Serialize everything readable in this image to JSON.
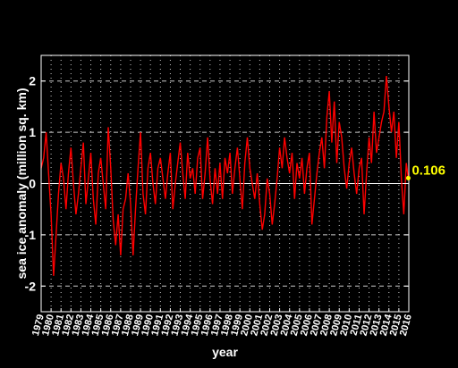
{
  "chart_data": {
    "type": "line",
    "title": "",
    "xlabel": "year",
    "ylabel": "sea ice anomaly (million sq. km)",
    "xlim": [
      1979,
      2016
    ],
    "ylim": [
      -2.5,
      2.5
    ],
    "yticks": [
      -2,
      -1,
      0,
      1,
      2
    ],
    "xticks": [
      1979,
      1980,
      1981,
      1982,
      1983,
      1984,
      1985,
      1986,
      1987,
      1988,
      1989,
      1990,
      1991,
      1992,
      1993,
      1994,
      1995,
      1996,
      1997,
      1998,
      1999,
      2000,
      2001,
      2002,
      2003,
      2004,
      2005,
      2006,
      2007,
      2008,
      2009,
      2010,
      2011,
      2012,
      2013,
      2014,
      2015,
      2016
    ],
    "grid": true,
    "colors": {
      "background": "#000000",
      "line": "#ff0000",
      "grid": "#cccccc",
      "zero_line": "#ffffff",
      "text": "#ffffff",
      "annotation": "#ffff00"
    },
    "annotation": {
      "text": "0.106",
      "x": 2015.95,
      "y": 0.106
    },
    "series": [
      {
        "x": [
          1979.0,
          1979.25,
          1979.5,
          1979.75,
          1980.0,
          1980.25,
          1980.5,
          1980.75,
          1981.0,
          1981.25,
          1981.5,
          1981.75,
          1982.0,
          1982.25,
          1982.5,
          1982.75,
          1983.0,
          1983.25,
          1983.5,
          1983.75,
          1984.0,
          1984.25,
          1984.5,
          1984.75,
          1985.0,
          1985.25,
          1985.5,
          1985.75,
          1986.0,
          1986.25,
          1986.5,
          1986.75,
          1987.0,
          1987.25,
          1987.5,
          1987.75,
          1988.0,
          1988.25,
          1988.5,
          1988.75,
          1989.0,
          1989.25,
          1989.5,
          1989.75,
          1990.0,
          1990.25,
          1990.5,
          1990.75,
          1991.0,
          1991.25,
          1991.5,
          1991.75,
          1992.0,
          1992.25,
          1992.5,
          1992.75,
          1993.0,
          1993.25,
          1993.5,
          1993.75,
          1994.0,
          1994.25,
          1994.5,
          1994.75,
          1995.0,
          1995.25,
          1995.5,
          1995.75,
          1996.0,
          1996.25,
          1996.5,
          1996.75,
          1997.0,
          1997.25,
          1997.5,
          1997.75,
          1998.0,
          1998.25,
          1998.5,
          1998.75,
          1999.0,
          1999.25,
          1999.5,
          1999.75,
          2000.0,
          2000.25,
          2000.5,
          2000.75,
          2001.0,
          2001.25,
          2001.5,
          2001.75,
          2002.0,
          2002.25,
          2002.5,
          2002.75,
          2003.0,
          2003.25,
          2003.5,
          2003.75,
          2004.0,
          2004.25,
          2004.5,
          2004.75,
          2005.0,
          2005.25,
          2005.5,
          2005.75,
          2006.0,
          2006.25,
          2006.5,
          2006.75,
          2007.0,
          2007.25,
          2007.5,
          2007.75,
          2008.0,
          2008.25,
          2008.5,
          2008.75,
          2009.0,
          2009.25,
          2009.5,
          2009.75,
          2010.0,
          2010.25,
          2010.5,
          2010.75,
          2011.0,
          2011.25,
          2011.5,
          2011.75,
          2012.0,
          2012.25,
          2012.5,
          2012.75,
          2013.0,
          2013.25,
          2013.5,
          2013.75,
          2014.0,
          2014.25,
          2014.5,
          2014.75,
          2015.0,
          2015.25,
          2015.5,
          2015.75,
          2015.95
        ],
        "y": [
          0.3,
          0.5,
          1.0,
          0.2,
          -0.6,
          -1.8,
          -1.0,
          -0.2,
          0.4,
          0.1,
          -0.5,
          0.2,
          0.7,
          0.0,
          -0.6,
          -0.2,
          0.3,
          0.8,
          -0.4,
          0.1,
          0.6,
          -0.3,
          -0.8,
          0.2,
          0.5,
          0.0,
          -0.5,
          1.1,
          0.3,
          -0.7,
          -1.2,
          -0.6,
          -1.4,
          -0.5,
          -0.3,
          0.2,
          -0.4,
          -1.4,
          -0.5,
          0.3,
          1.0,
          -0.2,
          -0.6,
          0.3,
          0.6,
          0.0,
          -0.4,
          0.3,
          0.5,
          0.1,
          -0.3,
          0.2,
          0.6,
          -0.5,
          0.0,
          0.4,
          0.8,
          0.2,
          -0.3,
          0.6,
          0.1,
          0.3,
          -0.2,
          0.5,
          0.7,
          -0.3,
          0.2,
          0.9,
          0.1,
          -0.4,
          0.3,
          -0.2,
          0.4,
          -0.3,
          0.5,
          0.2,
          0.6,
          -0.2,
          0.3,
          0.7,
          0.1,
          -0.5,
          0.4,
          0.9,
          0.3,
          0.0,
          -0.3,
          0.2,
          -0.4,
          -0.9,
          -0.6,
          0.1,
          -0.2,
          -0.8,
          -0.4,
          0.1,
          0.7,
          0.3,
          0.9,
          0.5,
          0.2,
          0.6,
          -0.3,
          0.4,
          0.1,
          0.5,
          -0.2,
          0.3,
          0.6,
          -0.8,
          -0.3,
          0.2,
          0.6,
          0.9,
          0.3,
          1.3,
          1.8,
          0.8,
          1.6,
          0.4,
          1.2,
          0.9,
          0.3,
          -0.1,
          0.4,
          0.7,
          0.2,
          -0.2,
          0.3,
          0.5,
          -0.6,
          0.2,
          0.9,
          0.4,
          1.4,
          0.6,
          0.9,
          1.2,
          1.4,
          2.1,
          1.5,
          1.0,
          1.4,
          0.5,
          1.2,
          0.1,
          -0.6,
          0.4,
          0.106
        ]
      }
    ]
  }
}
